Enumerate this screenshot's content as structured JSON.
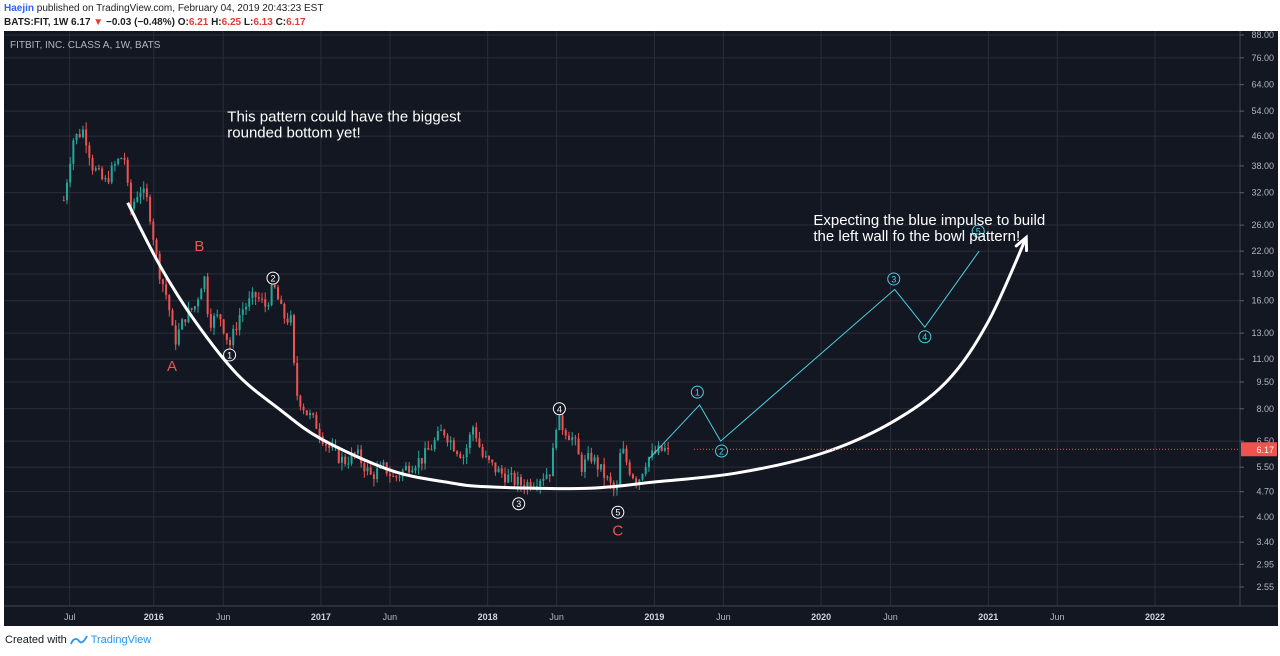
{
  "header": {
    "author": "Haejin",
    "published_text": "published on TradingView.com, February 04, 2019 20:43:23 EST",
    "ticker": "BATS:FIT, 1W",
    "last": "6.17",
    "change": "−0.03 (−0.48%)",
    "ohlc": [
      {
        "key": "O:",
        "value": "6.21"
      },
      {
        "key": "H:",
        "value": "6.25"
      },
      {
        "key": "L:",
        "value": "6.13"
      },
      {
        "key": "C:",
        "value": "6.17"
      }
    ]
  },
  "footer": {
    "text": "Created with",
    "brand": "TradingView"
  },
  "colors": {
    "background": "#131722",
    "up": "#26a69a",
    "down": "#ef5350",
    "grid": "#2a2e39",
    "axis_text": "#b2b5be",
    "annotation_curve": "#ffffff",
    "impulse": "#4dd0e1",
    "abc_label": "#ef5350"
  },
  "chart_data": {
    "type": "candlestick",
    "title": "FITBIT, INC. CLASS A, 1W, BATS",
    "y_scale": "log",
    "y_ticks": [
      "88.00",
      "76.00",
      "64.00",
      "54.00",
      "46.00",
      "38.00",
      "32.00",
      "26.00",
      "22.00",
      "19.00",
      "16.00",
      "13.00",
      "11.00",
      "9.50",
      "8.00",
      "6.50",
      "5.50",
      "4.70",
      "4.00",
      "3.40",
      "2.95",
      "2.55"
    ],
    "x_ticks": [
      {
        "label": "Jul",
        "date": "2015-07-01",
        "bold": false
      },
      {
        "label": "2016",
        "date": "2016-01-01",
        "bold": true
      },
      {
        "label": "Jun",
        "date": "2016-06-01",
        "bold": false
      },
      {
        "label": "2017",
        "date": "2017-01-01",
        "bold": true
      },
      {
        "label": "Jun",
        "date": "2017-06-01",
        "bold": false
      },
      {
        "label": "2018",
        "date": "2018-01-01",
        "bold": true
      },
      {
        "label": "Jun",
        "date": "2018-06-01",
        "bold": false
      },
      {
        "label": "2019",
        "date": "2019-01-01",
        "bold": true
      },
      {
        "label": "Jun",
        "date": "2019-06-01",
        "bold": false
      },
      {
        "label": "2020",
        "date": "2020-01-01",
        "bold": true
      },
      {
        "label": "Jun",
        "date": "2020-06-01",
        "bold": false
      },
      {
        "label": "2021",
        "date": "2021-01-01",
        "bold": true
      },
      {
        "label": "Jun",
        "date": "2021-06-01",
        "bold": false
      },
      {
        "label": "2022",
        "date": "2022-01-01",
        "bold": true
      }
    ],
    "last_price": "6.17",
    "price_path": [
      [
        "2015-06-18",
        30.5
      ],
      [
        "2015-07-08",
        45.0
      ],
      [
        "2015-08-01",
        48.0
      ],
      [
        "2015-08-20",
        38.0
      ],
      [
        "2015-09-15",
        34.0
      ],
      [
        "2015-10-10",
        38.5
      ],
      [
        "2015-10-28",
        41.0
      ],
      [
        "2015-11-10",
        28.5
      ],
      [
        "2015-12-01",
        33.0
      ],
      [
        "2015-12-20",
        30.0
      ],
      [
        "2016-01-10",
        20.0
      ],
      [
        "2016-02-01",
        16.0
      ],
      [
        "2016-02-15",
        12.2
      ],
      [
        "2016-03-10",
        14.5
      ],
      [
        "2016-04-01",
        15.5
      ],
      [
        "2016-04-20",
        19.0
      ],
      [
        "2016-05-01",
        14.0
      ],
      [
        "2016-05-25",
        14.5
      ],
      [
        "2016-06-15",
        12.0
      ],
      [
        "2016-07-10",
        15.0
      ],
      [
        "2016-08-10",
        16.5
      ],
      [
        "2016-09-01",
        15.5
      ],
      [
        "2016-09-20",
        17.5
      ],
      [
        "2016-10-10",
        14.5
      ],
      [
        "2016-10-30",
        14.0
      ],
      [
        "2016-11-05",
        9.0
      ],
      [
        "2016-12-01",
        7.8
      ],
      [
        "2016-12-20",
        7.3
      ],
      [
        "2017-01-15",
        6.3
      ],
      [
        "2017-02-20",
        5.7
      ],
      [
        "2017-03-20",
        6.0
      ],
      [
        "2017-04-20",
        5.2
      ],
      [
        "2017-05-20",
        5.5
      ],
      [
        "2017-06-10",
        5.1
      ],
      [
        "2017-07-15",
        5.6
      ],
      [
        "2017-08-10",
        5.8
      ],
      [
        "2017-09-01",
        6.3
      ],
      [
        "2017-09-25",
        7.0
      ],
      [
        "2017-10-20",
        6.3
      ],
      [
        "2017-11-10",
        5.9
      ],
      [
        "2017-12-01",
        7.2
      ],
      [
        "2017-12-20",
        5.9
      ],
      [
        "2018-01-20",
        5.4
      ],
      [
        "2018-02-20",
        5.1
      ],
      [
        "2018-03-20",
        4.9
      ],
      [
        "2018-04-20",
        5.1
      ],
      [
        "2018-05-20",
        5.4
      ],
      [
        "2018-06-01",
        7.5
      ],
      [
        "2018-06-20",
        7.0
      ],
      [
        "2018-07-10",
        6.5
      ],
      [
        "2018-07-25",
        5.5
      ],
      [
        "2018-08-15",
        5.9
      ],
      [
        "2018-09-10",
        5.3
      ],
      [
        "2018-10-01",
        4.8
      ],
      [
        "2018-10-10",
        4.6
      ],
      [
        "2018-10-20",
        6.3
      ],
      [
        "2018-11-05",
        5.5
      ],
      [
        "2018-11-25",
        5.0
      ],
      [
        "2018-12-15",
        5.8
      ],
      [
        "2019-01-10",
        6.1
      ],
      [
        "2019-02-01",
        6.17
      ]
    ],
    "annotations": {
      "texts": [
        {
          "id": "rounded",
          "lines": [
            "This pattern could have the biggest",
            "rounded bottom yet!"
          ],
          "date": "2016-06-10",
          "price": 50.5
        },
        {
          "id": "impulse",
          "lines": [
            "Expecting the blue impulse to build",
            "the left wall fo the bowl pattern!"
          ],
          "date": "2019-12-15",
          "price": 26.0
        }
      ],
      "letters": [
        {
          "label": "B",
          "date": "2016-04-10",
          "price": 22.0
        },
        {
          "label": "A",
          "date": "2016-02-10",
          "price": 10.2
        },
        {
          "label": "C",
          "date": "2018-10-13",
          "price": 3.55
        }
      ],
      "white_waves": [
        {
          "label": "1",
          "date": "2016-06-15",
          "price": 11.3
        },
        {
          "label": "2",
          "date": "2016-09-18",
          "price": 18.5
        },
        {
          "label": "3",
          "date": "2018-03-10",
          "price": 4.35
        },
        {
          "label": "4",
          "date": "2018-06-07",
          "price": 8.0
        },
        {
          "label": "5",
          "date": "2018-10-13",
          "price": 4.12
        }
      ],
      "blue_impulse": {
        "path": [
          [
            "2018-12-20",
            5.8
          ],
          [
            "2019-04-10",
            8.2
          ],
          [
            "2019-05-26",
            6.5
          ],
          [
            "2020-06-10",
            17.2
          ],
          [
            "2020-08-15",
            13.5
          ],
          [
            "2020-12-12",
            22.0
          ]
        ],
        "labels": [
          {
            "label": "1",
            "date": "2019-04-05",
            "price": 8.9
          },
          {
            "label": "2",
            "date": "2019-05-28",
            "price": 6.1
          },
          {
            "label": "3",
            "date": "2020-06-08",
            "price": 18.4
          },
          {
            "label": "4",
            "date": "2020-08-15",
            "price": 12.7
          },
          {
            "label": "5",
            "date": "2020-12-10",
            "price": 25.0
          }
        ]
      },
      "bowl_curve": [
        [
          "2015-11-05",
          30.0
        ],
        [
          "2016-01-15",
          20.0
        ],
        [
          "2016-04-01",
          14.0
        ],
        [
          "2016-07-01",
          10.0
        ],
        [
          "2016-10-01",
          8.0
        ],
        [
          "2017-01-01",
          6.6
        ],
        [
          "2017-06-01",
          5.4
        ],
        [
          "2017-10-01",
          5.0
        ],
        [
          "2018-01-01",
          4.85
        ],
        [
          "2018-08-01",
          4.8
        ],
        [
          "2019-01-01",
          5.0
        ],
        [
          "2019-07-01",
          5.3
        ],
        [
          "2020-01-01",
          6.0
        ],
        [
          "2020-06-01",
          7.3
        ],
        [
          "2020-10-01",
          9.5
        ],
        [
          "2021-01-01",
          14.0
        ],
        [
          "2021-03-25",
          24.0
        ]
      ]
    }
  }
}
